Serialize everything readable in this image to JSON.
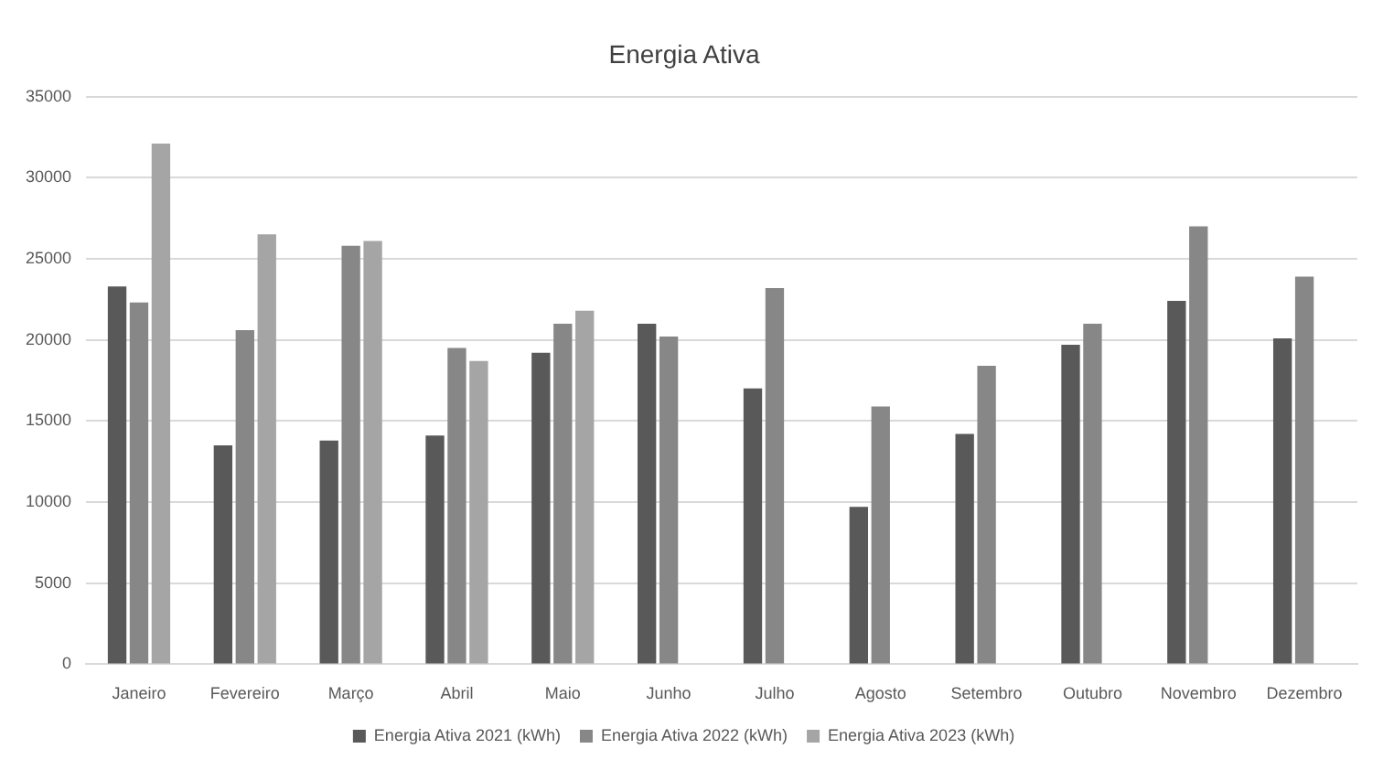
{
  "chart_data": {
    "type": "bar",
    "title": "Energia Ativa",
    "categories": [
      "Janeiro",
      "Fevereiro",
      "Março",
      "Abril",
      "Maio",
      "Junho",
      "Julho",
      "Agosto",
      "Setembro",
      "Outubro",
      "Novembro",
      "Dezembro"
    ],
    "series": [
      {
        "name": "Energia Ativa 2021 (kWh)",
        "color": "#595959",
        "values": [
          23300,
          13500,
          13800,
          14100,
          19200,
          21000,
          17000,
          9700,
          14200,
          19700,
          22400,
          20100
        ]
      },
      {
        "name": "Energia Ativa 2022 (kWh)",
        "color": "#878787",
        "values": [
          22300,
          20600,
          25800,
          19500,
          21000,
          20200,
          23200,
          15900,
          18400,
          21000,
          27000,
          23900
        ]
      },
      {
        "name": "Energia Ativa 2023 (kWh)",
        "color": "#a5a5a5",
        "values": [
          32100,
          26500,
          26100,
          18700,
          21800,
          null,
          null,
          null,
          null,
          null,
          null,
          null
        ]
      }
    ],
    "ylim": [
      0,
      35000
    ],
    "yticks": [
      0,
      5000,
      10000,
      15000,
      20000,
      25000,
      30000,
      35000
    ],
    "grid": "y",
    "legend": "bottom"
  }
}
